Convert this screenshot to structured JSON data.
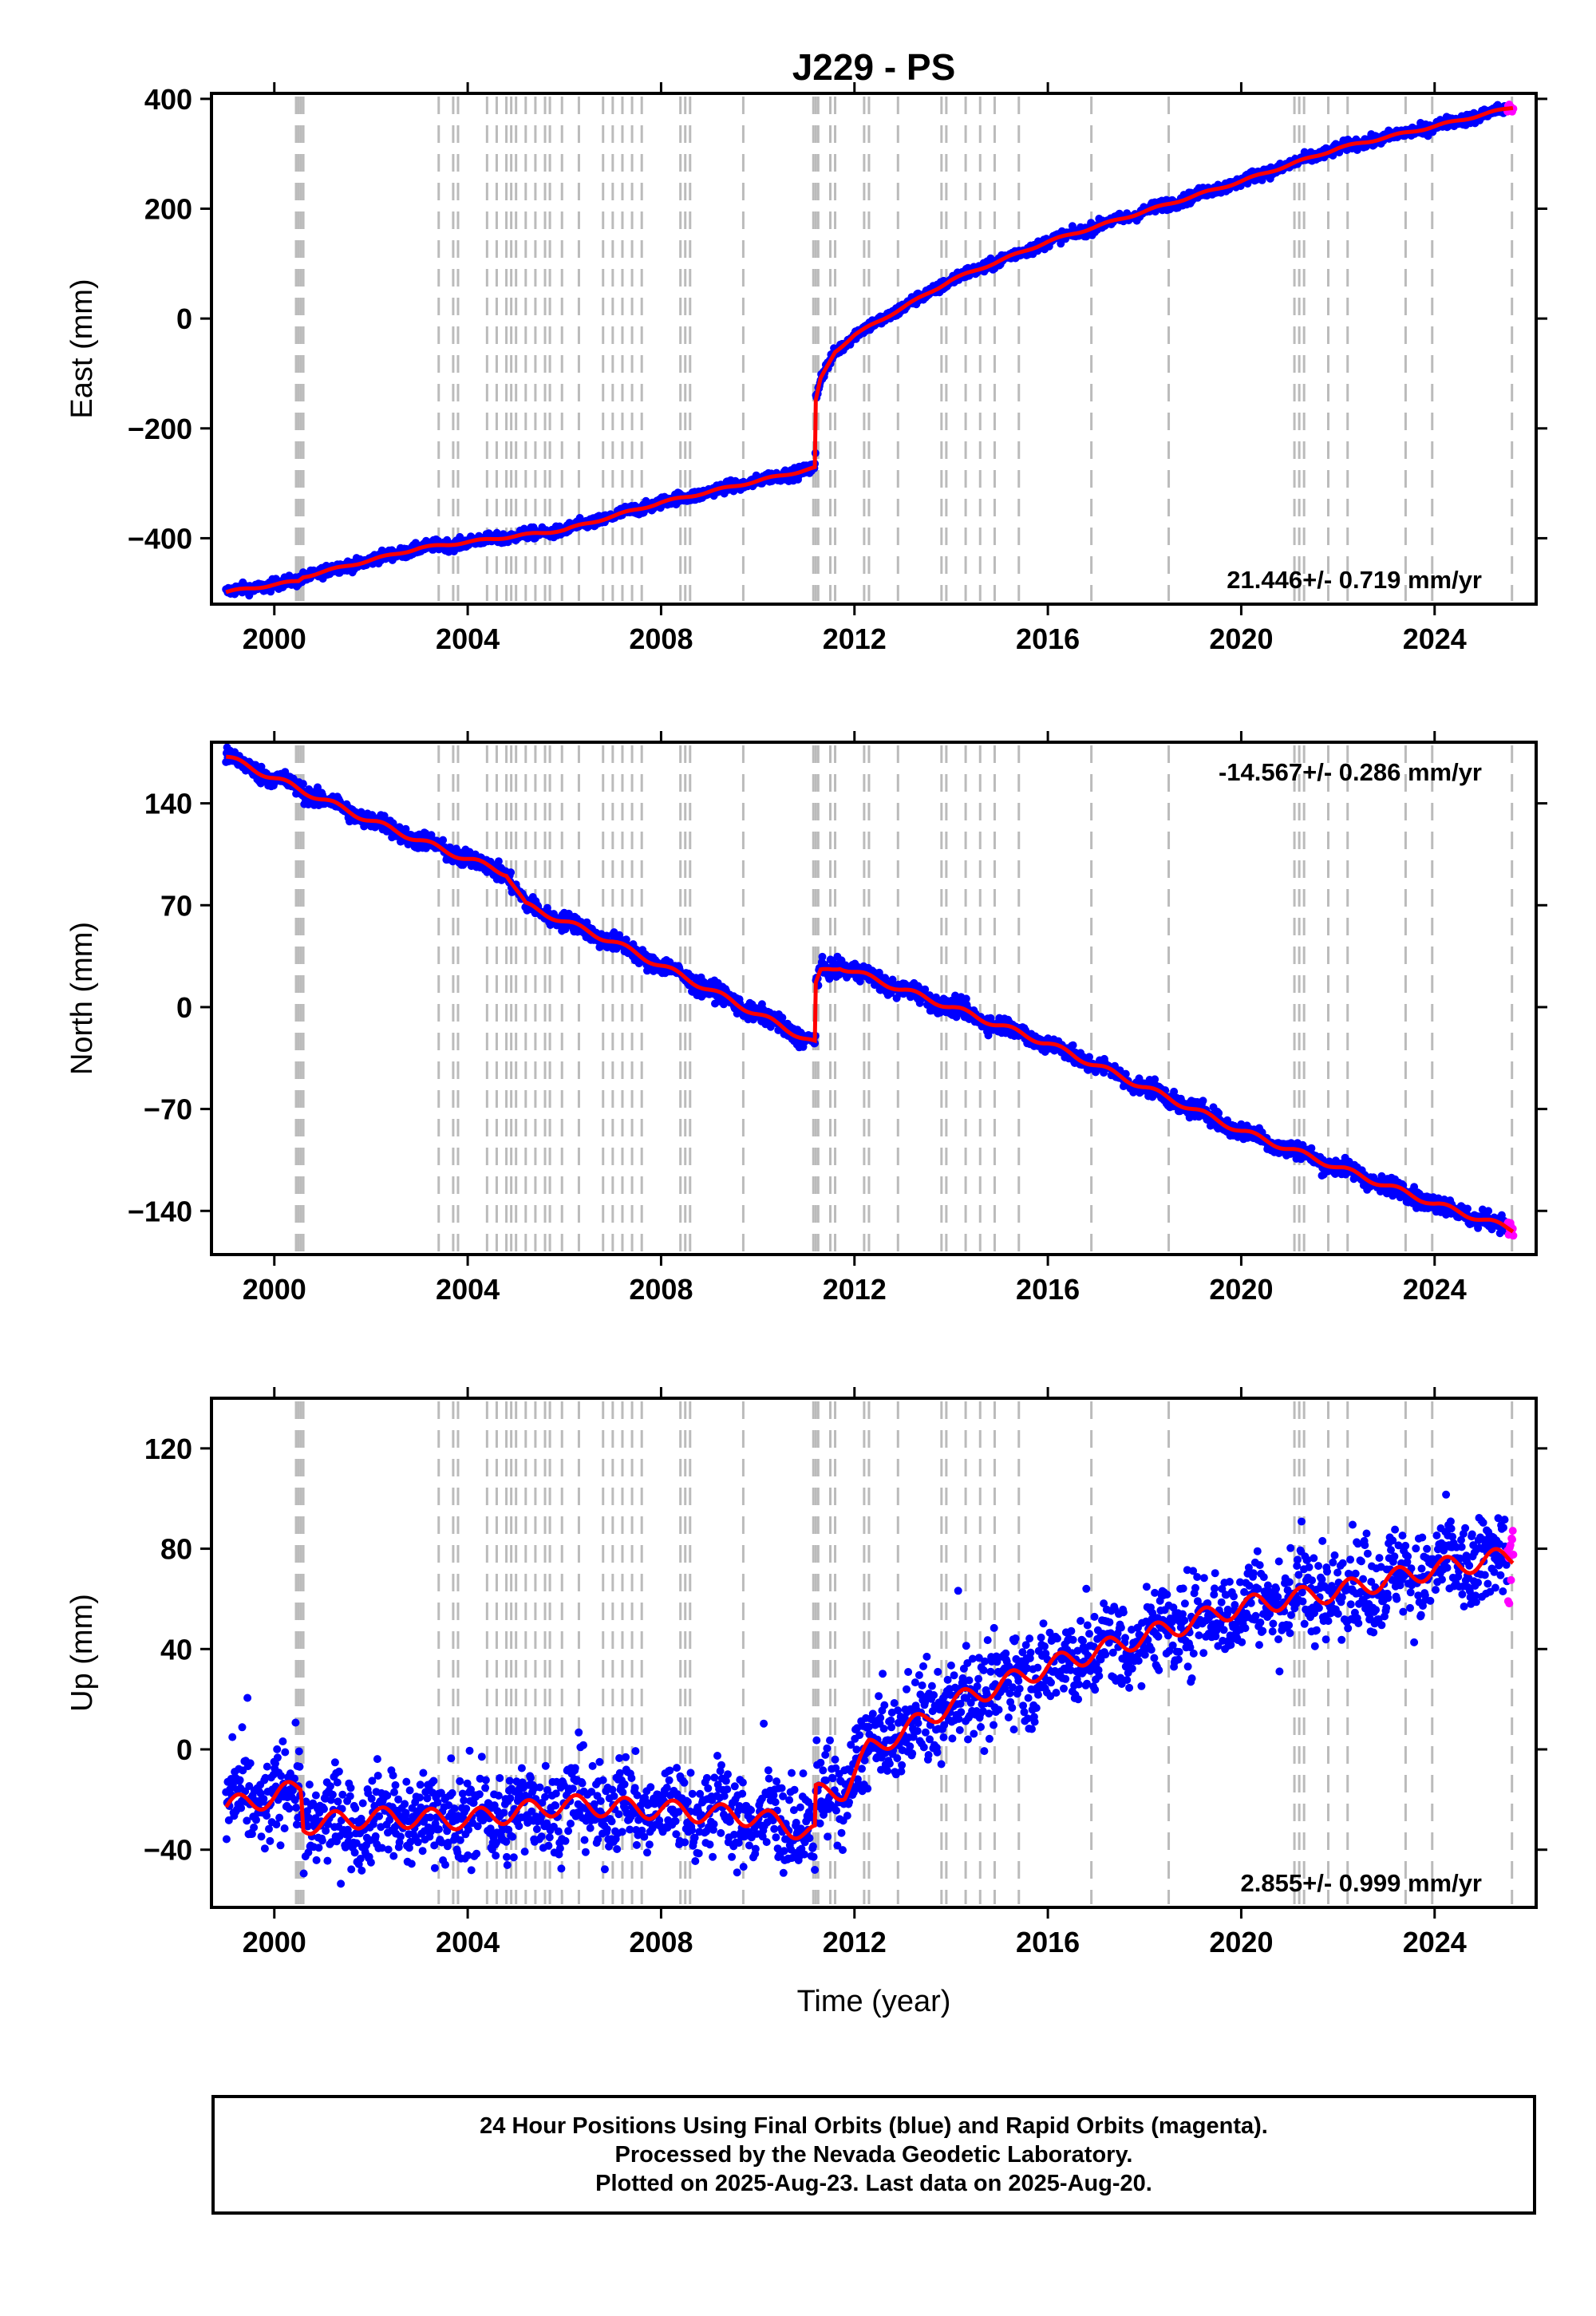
{
  "chart_data": {
    "title": "J229 - PS",
    "xlabel": "Time (year)",
    "xlim": [
      1998.7,
      2026.1
    ],
    "xticks": [
      2000,
      2004,
      2008,
      2012,
      2016,
      2020,
      2024
    ],
    "series_colors": {
      "final": "#0000ff",
      "rapid": "#ff00ff",
      "model": "#ff0000",
      "steps": "#bbbbbb"
    },
    "step_lines": [
      2000.45,
      2000.5,
      2000.55,
      2000.6,
      2003.4,
      2003.7,
      2003.8,
      2004.4,
      2004.6,
      2004.8,
      2004.9,
      2005.0,
      2005.2,
      2005.4,
      2005.6,
      2005.7,
      2005.95,
      2006.3,
      2006.8,
      2007.0,
      2007.2,
      2007.4,
      2007.6,
      2008.4,
      2008.5,
      2008.6,
      2009.7,
      2011.15,
      2011.2,
      2011.25,
      2011.5,
      2011.6,
      2012.2,
      2012.3,
      2012.9,
      2013.8,
      2013.9,
      2014.3,
      2014.6,
      2014.9,
      2015.4,
      2016.9,
      2018.5,
      2021.1,
      2021.2,
      2021.3,
      2021.8,
      2022.2,
      2023.4,
      2023.95,
      2025.6
    ],
    "panels": [
      {
        "ylabel": "East (mm)",
        "ylim": [
          -520,
          410
        ],
        "yticks": [
          -400,
          -200,
          0,
          200,
          400
        ],
        "ytick_labels": [
          "−400",
          "−200",
          "0",
          "200",
          "400"
        ],
        "rate": "21.446+/- 0.719 mm/yr",
        "rate_pos": "bottom-right",
        "model": [
          [
            1999.0,
            -498
          ],
          [
            2000.5,
            -478
          ],
          [
            2000.6,
            -470
          ],
          [
            2003.0,
            -418
          ],
          [
            2006.0,
            -385
          ],
          [
            2008.0,
            -335
          ],
          [
            2011.19,
            -272
          ],
          [
            2011.2,
            -150
          ],
          [
            2011.3,
            -110
          ],
          [
            2011.6,
            -60
          ],
          [
            2012.0,
            -30
          ],
          [
            2013.0,
            20
          ],
          [
            2014.0,
            70
          ],
          [
            2016.0,
            140
          ],
          [
            2018.0,
            195
          ],
          [
            2020.0,
            250
          ],
          [
            2022.0,
            310
          ],
          [
            2024.0,
            350
          ],
          [
            2025.63,
            385
          ]
        ],
        "noise": 5,
        "seasonal": 2,
        "rapid_start": 2025.5
      },
      {
        "ylabel": "North (mm)",
        "ylim": [
          -170,
          182
        ],
        "yticks": [
          -140,
          -70,
          0,
          70,
          140
        ],
        "ytick_labels": [
          "−140",
          "−70",
          "0",
          "70",
          "140"
        ],
        "rate": "-14.567+/- 0.286 mm/yr",
        "rate_pos": "top-right",
        "model": [
          [
            1999.0,
            172
          ],
          [
            2000.5,
            150
          ],
          [
            2002.0,
            128
          ],
          [
            2003.5,
            108
          ],
          [
            2004.8,
            92
          ],
          [
            2005.2,
            70
          ],
          [
            2007.0,
            45
          ],
          [
            2009.0,
            12
          ],
          [
            2011.19,
            -25
          ],
          [
            2011.2,
            15
          ],
          [
            2011.3,
            24
          ],
          [
            2011.7,
            28
          ],
          [
            2012.5,
            18
          ],
          [
            2014.0,
            0
          ],
          [
            2016.0,
            -25
          ],
          [
            2018.0,
            -55
          ],
          [
            2020.0,
            -85
          ],
          [
            2022.0,
            -110
          ],
          [
            2024.0,
            -135
          ],
          [
            2025.63,
            -153
          ]
        ],
        "noise": 3,
        "seasonal": 2,
        "rapid_start": 2025.5
      },
      {
        "ylabel": "Up (mm)",
        "ylim": [
          -63,
          140
        ],
        "yticks": [
          -40,
          0,
          40,
          80,
          120
        ],
        "ytick_labels": [
          "−40",
          "0",
          "40",
          "80",
          "120"
        ],
        "rate": "2.855+/- 0.999 mm/yr",
        "rate_pos": "bottom-right",
        "model": [
          [
            1999.0,
            -23
          ],
          [
            2000.0,
            -19
          ],
          [
            2000.55,
            -15
          ],
          [
            2000.6,
            -30
          ],
          [
            2002.0,
            -27
          ],
          [
            2004.0,
            -28
          ],
          [
            2006.0,
            -22
          ],
          [
            2008.0,
            -24
          ],
          [
            2010.0,
            -27
          ],
          [
            2011.19,
            -34
          ],
          [
            2011.2,
            -18
          ],
          [
            2011.8,
            -16
          ],
          [
            2012.3,
            0
          ],
          [
            2013.0,
            7
          ],
          [
            2014.0,
            18
          ],
          [
            2016.0,
            33
          ],
          [
            2018.0,
            45
          ],
          [
            2020.0,
            57
          ],
          [
            2022.0,
            63
          ],
          [
            2024.0,
            72
          ],
          [
            2025.63,
            77
          ]
        ],
        "noise": 9,
        "seasonal": 4,
        "rapid_start": 2025.5
      }
    ]
  },
  "footer": {
    "line1": "24 Hour Positions Using Final Orbits (blue) and Rapid Orbits (magenta).",
    "line2": "Processed by the Nevada Geodetic Laboratory.",
    "line3": "Plotted on 2025-Aug-23. Last data on 2025-Aug-20."
  }
}
